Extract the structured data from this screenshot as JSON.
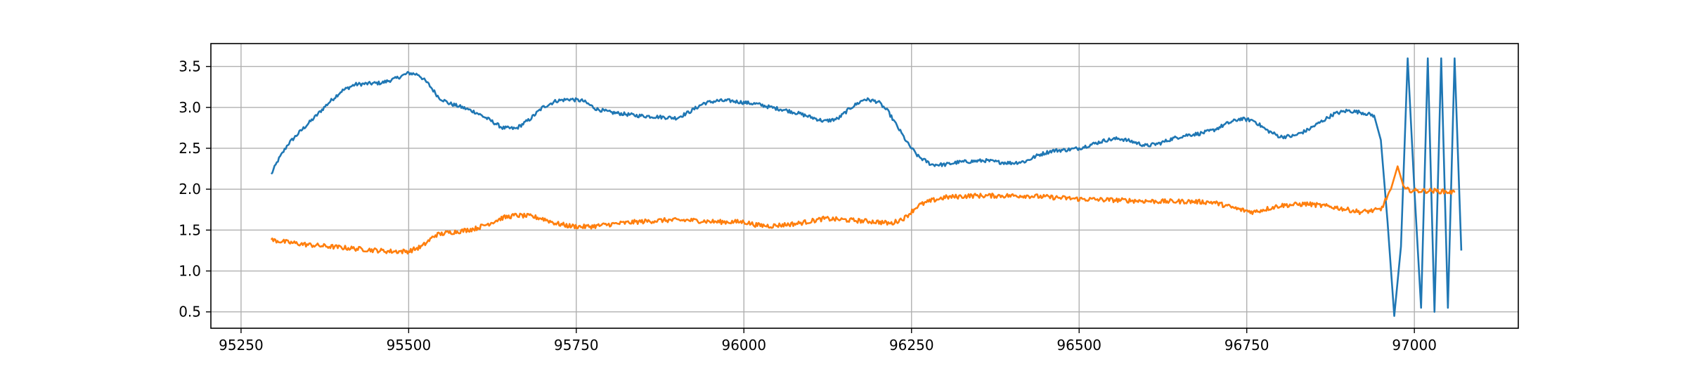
{
  "chart_data": {
    "type": "line",
    "title": "",
    "xlabel": "",
    "ylabel": "",
    "xlim": [
      95205,
      97155
    ],
    "ylim": [
      0.3,
      3.78
    ],
    "grid": true,
    "xticks": [
      95250,
      95500,
      95750,
      96000,
      96250,
      96500,
      96750,
      97000
    ],
    "yticks": [
      0.5,
      1.0,
      1.5,
      2.0,
      2.5,
      3.0,
      3.5
    ],
    "xtick_labels": [
      "95250",
      "95500",
      "95750",
      "96000",
      "96250",
      "96500",
      "96750",
      "97000"
    ],
    "ytick_labels": [
      "0.5",
      "1.0",
      "1.5",
      "2.0",
      "2.5",
      "3.0",
      "3.5"
    ],
    "colors": {
      "series_1": "#1f77b4",
      "series_2": "#ff7f0e",
      "grid": "#b0b0b0",
      "axes": "#000000"
    },
    "series": [
      {
        "x": [
          95295,
          95305,
          95320,
          95340,
          95360,
          95380,
          95400,
          95420,
          95440,
          95460,
          95480,
          95500,
          95515,
          95530,
          95545,
          95560,
          95580,
          95600,
          95620,
          95640,
          95660,
          95680,
          95700,
          95720,
          95740,
          95760,
          95780,
          95800,
          95820,
          95840,
          95860,
          95880,
          95900,
          95920,
          95940,
          95960,
          95980,
          96000,
          96020,
          96040,
          96060,
          96080,
          96100,
          96120,
          96140,
          96160,
          96180,
          96200,
          96215,
          96230,
          96245,
          96260,
          96280,
          96300,
          96320,
          96340,
          96360,
          96380,
          96400,
          96420,
          96440,
          96460,
          96480,
          96500,
          96520,
          96540,
          96560,
          96580,
          96600,
          96620,
          96640,
          96660,
          96680,
          96700,
          96720,
          96740,
          96760,
          96780,
          96800,
          96820,
          96840,
          96860,
          96880,
          96900,
          96920,
          96940,
          96950,
          96960,
          96970,
          96980,
          96990,
          97000,
          97010,
          97020,
          97030,
          97040,
          97050,
          97060,
          97070
        ],
        "values": [
          2.18,
          2.35,
          2.55,
          2.72,
          2.88,
          3.05,
          3.2,
          3.28,
          3.29,
          3.3,
          3.35,
          3.42,
          3.4,
          3.28,
          3.12,
          3.05,
          3.0,
          2.94,
          2.85,
          2.75,
          2.74,
          2.85,
          3.0,
          3.08,
          3.1,
          3.08,
          2.98,
          2.94,
          2.92,
          2.9,
          2.89,
          2.88,
          2.87,
          2.95,
          3.05,
          3.08,
          3.08,
          3.06,
          3.04,
          3.0,
          2.97,
          2.93,
          2.88,
          2.83,
          2.86,
          3.0,
          3.1,
          3.07,
          2.95,
          2.75,
          2.55,
          2.4,
          2.3,
          2.3,
          2.33,
          2.34,
          2.35,
          2.33,
          2.32,
          2.34,
          2.42,
          2.47,
          2.48,
          2.5,
          2.55,
          2.6,
          2.62,
          2.58,
          2.53,
          2.56,
          2.62,
          2.66,
          2.68,
          2.72,
          2.8,
          2.86,
          2.84,
          2.72,
          2.64,
          2.65,
          2.72,
          2.82,
          2.92,
          2.96,
          2.94,
          2.9,
          2.6,
          1.6,
          0.45,
          1.3,
          3.6,
          2.0,
          0.55,
          3.6,
          0.5,
          3.6,
          0.55,
          3.6,
          1.25
        ]
      },
      {
        "x": [
          95295,
          95320,
          95350,
          95380,
          95410,
          95440,
          95470,
          95500,
          95520,
          95540,
          95560,
          95580,
          95600,
          95620,
          95640,
          95660,
          95680,
          95700,
          95720,
          95740,
          95760,
          95780,
          95800,
          95840,
          95880,
          95920,
          95960,
          96000,
          96020,
          96040,
          96080,
          96120,
          96160,
          96200,
          96220,
          96240,
          96260,
          96280,
          96300,
          96340,
          96380,
          96420,
          96460,
          96500,
          96540,
          96580,
          96620,
          96660,
          96700,
          96740,
          96760,
          96800,
          96840,
          96880,
          96920,
          96950,
          96965,
          96975,
          96985,
          97000,
          97030,
          97060
        ],
        "values": [
          1.38,
          1.35,
          1.32,
          1.3,
          1.28,
          1.26,
          1.24,
          1.24,
          1.3,
          1.44,
          1.47,
          1.49,
          1.52,
          1.58,
          1.65,
          1.68,
          1.67,
          1.64,
          1.58,
          1.55,
          1.54,
          1.55,
          1.57,
          1.6,
          1.62,
          1.62,
          1.6,
          1.6,
          1.56,
          1.55,
          1.58,
          1.64,
          1.62,
          1.6,
          1.58,
          1.65,
          1.8,
          1.86,
          1.9,
          1.92,
          1.92,
          1.92,
          1.9,
          1.88,
          1.87,
          1.86,
          1.85,
          1.85,
          1.84,
          1.75,
          1.72,
          1.8,
          1.82,
          1.78,
          1.72,
          1.75,
          2.0,
          2.28,
          2.0,
          1.98,
          1.98,
          1.96
        ]
      }
    ]
  }
}
